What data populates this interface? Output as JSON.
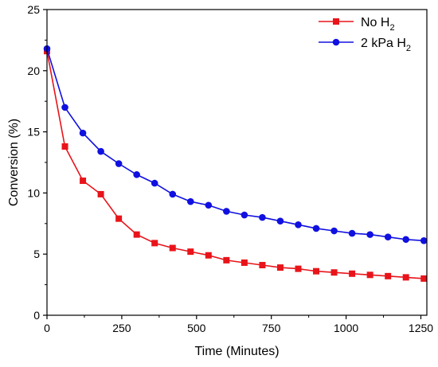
{
  "chart_data": {
    "type": "line",
    "xlabel": "Time (Minutes)",
    "ylabel": "Conversion (%)",
    "xlim": [
      0,
      1270
    ],
    "ylim": [
      0,
      25
    ],
    "xticks": [
      0,
      250,
      500,
      750,
      1000,
      1250
    ],
    "yticks": [
      0,
      5,
      10,
      15,
      20,
      25
    ],
    "legend_position": "top-right",
    "grid": false,
    "series": [
      {
        "name": "No H",
        "name_sub": "2",
        "color": "#e8141a",
        "marker": "square",
        "x": [
          0,
          60,
          120,
          180,
          240,
          300,
          360,
          420,
          480,
          540,
          600,
          660,
          720,
          780,
          840,
          900,
          960,
          1020,
          1080,
          1140,
          1200,
          1260
        ],
        "values": [
          21.6,
          13.8,
          11.0,
          9.9,
          7.9,
          6.6,
          5.9,
          5.5,
          5.2,
          4.9,
          4.5,
          4.3,
          4.1,
          3.9,
          3.8,
          3.6,
          3.5,
          3.4,
          3.3,
          3.2,
          3.1,
          3.0
        ]
      },
      {
        "name": "2 kPa H",
        "name_sub": "2",
        "color": "#1010e0",
        "marker": "circle",
        "x": [
          0,
          60,
          120,
          180,
          240,
          300,
          360,
          420,
          480,
          540,
          600,
          660,
          720,
          780,
          840,
          900,
          960,
          1020,
          1080,
          1140,
          1200,
          1260
        ],
        "values": [
          21.8,
          17.0,
          14.9,
          13.4,
          12.4,
          11.5,
          10.8,
          9.9,
          9.3,
          9.0,
          8.5,
          8.2,
          8.0,
          7.7,
          7.4,
          7.1,
          6.9,
          6.7,
          6.6,
          6.4,
          6.2,
          6.1
        ]
      }
    ]
  }
}
